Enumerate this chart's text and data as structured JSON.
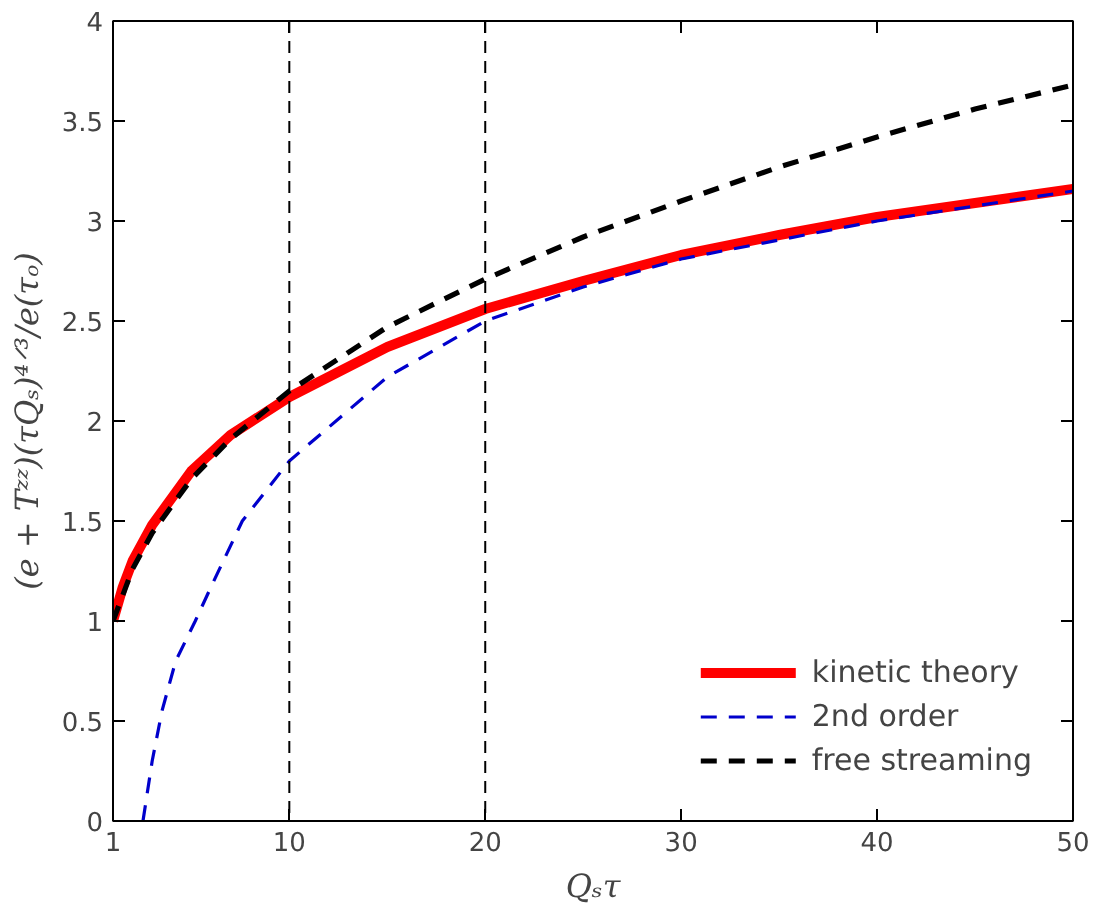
{
  "chart_data": {
    "type": "line",
    "xlabel": "Qₛτ",
    "ylabel": "(e + Tᶻᶻ)(τQₛ)⁴ᐟ³/e(τₒ)",
    "xlim": [
      1,
      50
    ],
    "ylim": [
      0,
      4
    ],
    "xticks": [
      1,
      10,
      20,
      30,
      40,
      50
    ],
    "yticks": [
      0,
      0.5,
      1,
      1.5,
      2,
      2.5,
      3,
      3.5,
      4
    ],
    "grid": false,
    "legend": "bottom right",
    "series": [
      {
        "name": "kinetic theory",
        "color": "#ff0000",
        "line_style": "solid",
        "x": [
          1,
          1.5,
          2,
          3,
          5,
          7,
          10,
          15,
          20,
          25,
          30,
          35,
          40,
          45,
          50
        ],
        "values": [
          1.0,
          1.17,
          1.3,
          1.48,
          1.75,
          1.93,
          2.12,
          2.37,
          2.56,
          2.7,
          2.83,
          2.93,
          3.02,
          3.09,
          3.16
        ]
      },
      {
        "name": "2nd order",
        "color": "#0000cc",
        "line_style": "dashed",
        "x": [
          2.53,
          3,
          3.5,
          4.2,
          5.2,
          6,
          7.6,
          10,
          15,
          20,
          25,
          30,
          40,
          50
        ],
        "values": [
          0,
          0.3,
          0.55,
          0.8,
          1.0,
          1.17,
          1.5,
          1.8,
          2.22,
          2.5,
          2.67,
          2.81,
          3.0,
          3.15
        ]
      },
      {
        "name": "free streaming",
        "color": "#000000",
        "line_style": "dashed",
        "x": [
          1,
          2,
          3,
          5,
          7,
          10,
          15,
          20,
          25,
          30,
          35,
          40,
          45,
          50
        ],
        "values": [
          1.0,
          1.26,
          1.44,
          1.71,
          1.91,
          2.15,
          2.47,
          2.71,
          2.92,
          3.1,
          3.27,
          3.42,
          3.56,
          3.68
        ]
      }
    ],
    "ref_lines": [
      {
        "axis": "x",
        "value": 10,
        "color": "#000000",
        "line_style": "dashed"
      },
      {
        "axis": "x",
        "value": 20,
        "color": "#000000",
        "line_style": "dashed"
      }
    ]
  }
}
